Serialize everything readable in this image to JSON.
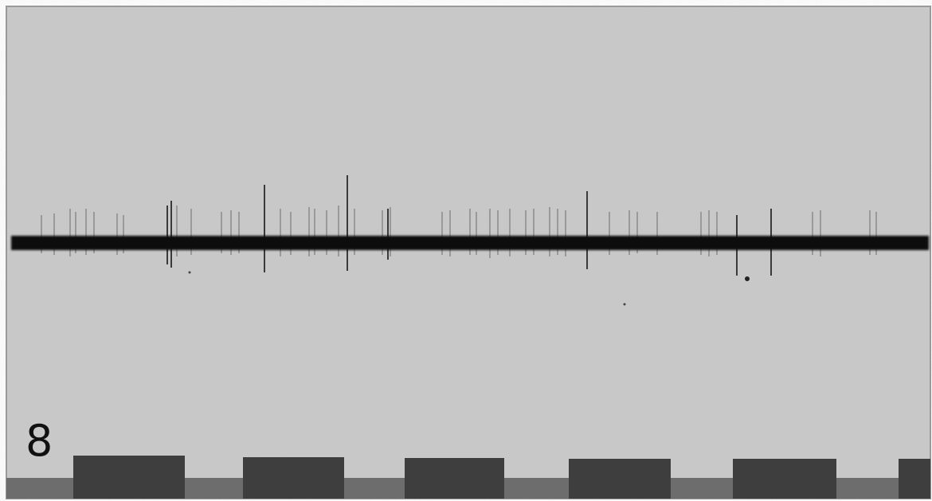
{
  "panel": {
    "label": "8"
  }
}
